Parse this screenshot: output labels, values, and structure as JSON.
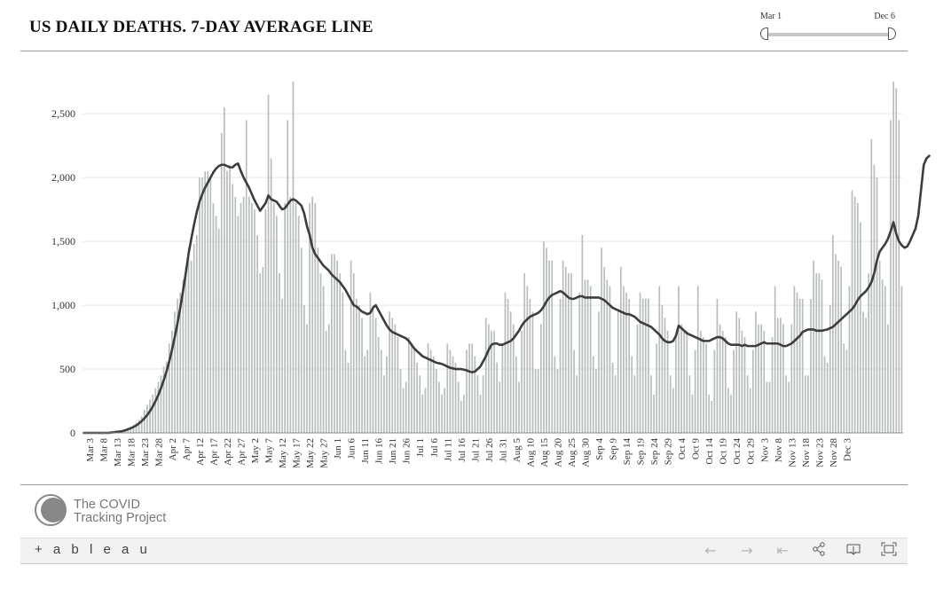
{
  "title": "US DAILY DEATHS. 7-DAY AVERAGE LINE",
  "slider": {
    "min_label": "Mar 1",
    "max_label": "Dec 6"
  },
  "logo": {
    "line1": "The COVID",
    "line2": "Tracking Project"
  },
  "toolbar": {
    "brand": "+ a b l e a u",
    "icons": [
      "back-icon",
      "forward-icon",
      "revert-icon",
      "share-icon",
      "download-icon",
      "fullscreen-icon"
    ]
  },
  "colors": {
    "bar": "#b8bfbb",
    "line": "#3d3d3d",
    "grid": "#e6e6e6",
    "axis": "#888888"
  },
  "chart_data": {
    "type": "bar",
    "title": "US DAILY DEATHS. 7-DAY AVERAGE LINE",
    "x_start": "Mar 1",
    "x_end": "Dec 6",
    "ylim": [
      0,
      2800
    ],
    "yticks": [
      0,
      500,
      1000,
      1500,
      2000,
      2500
    ],
    "ytick_labels": [
      "0",
      "500",
      "1,000",
      "1,500",
      "2,000",
      "2,500"
    ],
    "xtick_labels": [
      "Mar 3",
      "Mar 8",
      "Mar 13",
      "Mar 18",
      "Mar 23",
      "Mar 28",
      "Apr 2",
      "Apr 7",
      "Apr 12",
      "Apr 17",
      "Apr 22",
      "Apr 27",
      "May 2",
      "May 7",
      "May 12",
      "May 17",
      "May 22",
      "May 27",
      "Jun 1",
      "Jun 6",
      "Jun 11",
      "Jun 16",
      "Jun 21",
      "Jun 26",
      "Jul 1",
      "Jul 6",
      "Jul 11",
      "Jul 16",
      "Jul 21",
      "Jul 26",
      "Jul 31",
      "Aug 5",
      "Aug 10",
      "Aug 15",
      "Aug 20",
      "Aug 25",
      "Aug 30",
      "Sep 4",
      "Sep 9",
      "Sep 14",
      "Sep 19",
      "Sep 24",
      "Sep 29",
      "Oct 4",
      "Oct 9",
      "Oct 14",
      "Oct 19",
      "Oct 24",
      "Oct 29",
      "Nov 3",
      "Nov 8",
      "Nov 13",
      "Nov 18",
      "Nov 23",
      "Nov 28",
      "Dec 3"
    ],
    "series": [
      {
        "values": [
          0,
          0,
          0,
          0,
          0,
          0,
          0,
          0,
          0,
          0,
          5,
          8,
          10,
          15,
          18,
          30,
          40,
          50,
          60,
          80,
          100,
          130,
          180,
          220,
          260,
          300,
          350,
          400,
          450,
          520,
          560,
          700,
          800,
          950,
          1050,
          1100,
          1200,
          1300,
          1450,
          1350,
          1480,
          1550,
          2000,
          2000,
          2050,
          2050,
          2000,
          1800,
          1700,
          1600,
          2350,
          2550,
          2050,
          2100,
          1950,
          1850,
          1700,
          1800,
          1850,
          2450,
          1850,
          1800,
          1750,
          1550,
          1250,
          1300,
          1750,
          2650,
          2150,
          1800,
          1700,
          1250,
          1050,
          1800,
          2450,
          1850,
          2750,
          1800,
          1700,
          1450,
          1000,
          850,
          1800,
          1850,
          1800,
          1450,
          1250,
          1150,
          800,
          850,
          1400,
          1400,
          1350,
          1250,
          1100,
          650,
          550,
          1350,
          1250,
          1050,
          1000,
          900,
          600,
          650,
          1100,
          1000,
          900,
          750,
          650,
          450,
          600,
          950,
          900,
          850,
          750,
          500,
          350,
          400,
          750,
          700,
          650,
          550,
          450,
          300,
          350,
          700,
          650,
          600,
          500,
          400,
          300,
          350,
          700,
          650,
          600,
          550,
          400,
          250,
          300,
          650,
          700,
          700,
          600,
          450,
          300,
          450,
          900,
          850,
          800,
          800,
          550,
          400,
          700,
          1100,
          1050,
          950,
          850,
          600,
          400,
          800,
          1250,
          1150,
          1050,
          950,
          500,
          500,
          850,
          1500,
          1450,
          1350,
          1350,
          600,
          500,
          1050,
          1350,
          1300,
          1250,
          1250,
          650,
          450,
          1100,
          1550,
          1200,
          1200,
          1150,
          600,
          500,
          950,
          1450,
          1300,
          1200,
          1150,
          550,
          450,
          950,
          1300,
          1150,
          1100,
          1050,
          600,
          450,
          850,
          1100,
          1050,
          1050,
          1050,
          450,
          300,
          700,
          1150,
          1000,
          900,
          800,
          450,
          350,
          750,
          1150,
          850,
          800,
          800,
          450,
          300,
          650,
          1150,
          800,
          750,
          700,
          300,
          250,
          650,
          1050,
          850,
          800,
          750,
          350,
          300,
          650,
          950,
          900,
          800,
          750,
          450,
          350,
          650,
          950,
          850,
          850,
          800,
          400,
          400,
          750,
          1150,
          900,
          900,
          850,
          450,
          400,
          850,
          1150,
          1100,
          1050,
          1050,
          450,
          450,
          1050,
          1350,
          1250,
          1250,
          1200,
          600,
          550,
          1000,
          1550,
          1400,
          1350,
          1300,
          700,
          650,
          1150,
          1900,
          1850,
          1800,
          1650,
          950,
          900,
          1250,
          2300,
          2100,
          2000,
          1350,
          1200,
          1150,
          850,
          2450,
          2750,
          2700,
          2450,
          1150
        ]
      },
      {
        "values": [
          0,
          0,
          0,
          0,
          0,
          0,
          0,
          0,
          0,
          0,
          3,
          5,
          8,
          10,
          14,
          20,
          28,
          36,
          46,
          58,
          74,
          92,
          114,
          140,
          170,
          206,
          248,
          296,
          350,
          412,
          480,
          560,
          650,
          750,
          860,
          980,
          1110,
          1250,
          1400,
          1520,
          1630,
          1730,
          1810,
          1870,
          1920,
          1960,
          2000,
          2040,
          2070,
          2090,
          2100,
          2100,
          2090,
          2080,
          2080,
          2100,
          2110,
          2050,
          2000,
          1960,
          1920,
          1870,
          1820,
          1780,
          1740,
          1770,
          1800,
          1860,
          1830,
          1820,
          1810,
          1780,
          1750,
          1760,
          1790,
          1820,
          1830,
          1820,
          1800,
          1780,
          1720,
          1620,
          1550,
          1450,
          1400,
          1370,
          1340,
          1310,
          1290,
          1270,
          1240,
          1220,
          1200,
          1180,
          1150,
          1120,
          1080,
          1040,
          1000,
          990,
          970,
          950,
          940,
          930,
          940,
          980,
          1000,
          960,
          920,
          880,
          840,
          810,
          790,
          780,
          770,
          760,
          750,
          740,
          720,
          690,
          660,
          640,
          620,
          600,
          590,
          580,
          570,
          560,
          550,
          545,
          540,
          530,
          520,
          510,
          505,
          500,
          500,
          500,
          495,
          490,
          480,
          475,
          480,
          500,
          520,
          560,
          600,
          650,
          690,
          700,
          700,
          690,
          690,
          700,
          710,
          720,
          740,
          770,
          800,
          840,
          870,
          890,
          910,
          920,
          930,
          940,
          960,
          990,
          1030,
          1060,
          1080,
          1090,
          1100,
          1110,
          1100,
          1080,
          1060,
          1050,
          1050,
          1060,
          1070,
          1070,
          1060,
          1060,
          1060,
          1060,
          1060,
          1060,
          1050,
          1040,
          1020,
          1000,
          980,
          970,
          960,
          950,
          940,
          930,
          930,
          920,
          910,
          890,
          870,
          860,
          850,
          840,
          830,
          810,
          790,
          770,
          740,
          720,
          710,
          710,
          720,
          760,
          840,
          820,
          800,
          780,
          770,
          760,
          750,
          740,
          730,
          720,
          720,
          720,
          730,
          740,
          750,
          750,
          740,
          720,
          700,
          690,
          690,
          690,
          690,
          680,
          690,
          680,
          680,
          680,
          680,
          690,
          700,
          710,
          700,
          700,
          700,
          700,
          700,
          690,
          680,
          680,
          690,
          700,
          720,
          740,
          760,
          790,
          800,
          810,
          810,
          810,
          800,
          800,
          800,
          805,
          810,
          820,
          830,
          850,
          870,
          890,
          910,
          930,
          950,
          970,
          1000,
          1040,
          1070,
          1090,
          1110,
          1140,
          1180,
          1250,
          1350,
          1420,
          1450,
          1480,
          1520,
          1580,
          1650,
          1560,
          1500,
          1470,
          1450,
          1460,
          1500,
          1550,
          1600,
          1700,
          1900,
          2100,
          2150,
          2170
        ]
      }
    ]
  }
}
